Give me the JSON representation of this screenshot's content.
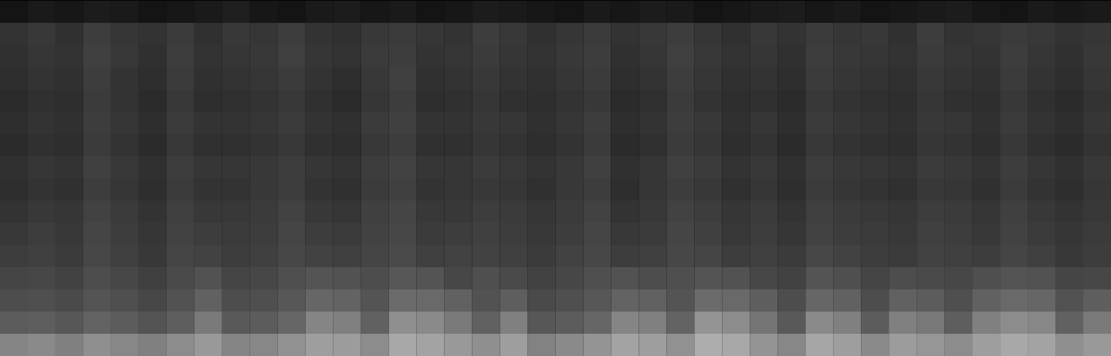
{
  "chart_data": {
    "type": "heatmap",
    "tick_labels": false,
    "zlim": [
      0,
      100
    ],
    "cells": [
      [
        8,
        10,
        9,
        11,
        10,
        8,
        9,
        10,
        12,
        9,
        8,
        10,
        11,
        9,
        10,
        8,
        9,
        11,
        10,
        9,
        8,
        10,
        9,
        11,
        10,
        8,
        9,
        10,
        11,
        9,
        10,
        8,
        9,
        10,
        11,
        9,
        8,
        10,
        9,
        10
      ],
      [
        20,
        22,
        19,
        24,
        21,
        20,
        23,
        19,
        22,
        21,
        24,
        20,
        19,
        22,
        23,
        21,
        20,
        24,
        22,
        19,
        21,
        23,
        20,
        22,
        24,
        21,
        19,
        22,
        20,
        23,
        21,
        22,
        19,
        24,
        20,
        21,
        23,
        22,
        20,
        21
      ],
      [
        19,
        21,
        20,
        25,
        22,
        19,
        24,
        20,
        21,
        22,
        25,
        21,
        20,
        23,
        24,
        20,
        21,
        23,
        21,
        20,
        22,
        24,
        19,
        21,
        25,
        22,
        20,
        21,
        19,
        24,
        22,
        21,
        20,
        23,
        21,
        20,
        24,
        21,
        19,
        22
      ],
      [
        18,
        20,
        19,
        24,
        20,
        18,
        23,
        19,
        20,
        21,
        23,
        20,
        18,
        22,
        25,
        19,
        20,
        22,
        20,
        19,
        21,
        23,
        18,
        20,
        24,
        21,
        19,
        20,
        18,
        23,
        21,
        20,
        19,
        22,
        20,
        19,
        23,
        20,
        18,
        21
      ],
      [
        17,
        19,
        18,
        23,
        20,
        17,
        22,
        18,
        19,
        20,
        22,
        19,
        17,
        21,
        24,
        18,
        19,
        21,
        19,
        18,
        20,
        22,
        17,
        19,
        23,
        20,
        18,
        19,
        17,
        22,
        20,
        19,
        18,
        21,
        19,
        18,
        22,
        19,
        17,
        20
      ],
      [
        18,
        20,
        19,
        24,
        21,
        18,
        23,
        20,
        20,
        21,
        23,
        20,
        19,
        23,
        25,
        20,
        20,
        22,
        21,
        19,
        21,
        24,
        18,
        20,
        24,
        22,
        19,
        21,
        18,
        23,
        21,
        20,
        19,
        22,
        21,
        19,
        23,
        20,
        18,
        21
      ],
      [
        17,
        19,
        18,
        23,
        20,
        17,
        22,
        19,
        19,
        20,
        22,
        19,
        18,
        22,
        24,
        19,
        19,
        21,
        20,
        18,
        20,
        23,
        17,
        19,
        23,
        21,
        18,
        20,
        17,
        22,
        20,
        19,
        18,
        21,
        20,
        18,
        22,
        19,
        17,
        20
      ],
      [
        19,
        21,
        20,
        25,
        22,
        19,
        24,
        21,
        21,
        22,
        24,
        21,
        20,
        24,
        26,
        21,
        21,
        23,
        22,
        20,
        22,
        25,
        19,
        21,
        25,
        23,
        20,
        22,
        19,
        24,
        22,
        21,
        20,
        23,
        22,
        20,
        24,
        21,
        19,
        22
      ],
      [
        18,
        20,
        19,
        24,
        21,
        18,
        23,
        20,
        20,
        22,
        24,
        20,
        19,
        23,
        25,
        20,
        21,
        22,
        21,
        19,
        22,
        24,
        18,
        21,
        24,
        22,
        19,
        21,
        18,
        23,
        21,
        20,
        19,
        22,
        21,
        19,
        23,
        20,
        18,
        21
      ],
      [
        20,
        22,
        21,
        26,
        23,
        20,
        25,
        22,
        22,
        23,
        26,
        22,
        21,
        25,
        27,
        22,
        22,
        24,
        23,
        21,
        23,
        26,
        20,
        22,
        26,
        24,
        21,
        23,
        20,
        25,
        23,
        22,
        21,
        24,
        23,
        21,
        25,
        22,
        20,
        22
      ],
      [
        22,
        24,
        22,
        27,
        24,
        21,
        26,
        24,
        23,
        24,
        27,
        24,
        23,
        26,
        28,
        23,
        24,
        25,
        24,
        22,
        24,
        27,
        22,
        23,
        27,
        25,
        22,
        24,
        21,
        26,
        24,
        23,
        22,
        25,
        24,
        22,
        26,
        23,
        21,
        23
      ],
      [
        24,
        25,
        23,
        28,
        25,
        22,
        27,
        26,
        24,
        25,
        28,
        26,
        25,
        27,
        29,
        25,
        26,
        26,
        25,
        23,
        26,
        28,
        24,
        25,
        28,
        27,
        24,
        25,
        23,
        28,
        26,
        24,
        23,
        26,
        25,
        24,
        27,
        25,
        22,
        24
      ],
      [
        27,
        28,
        26,
        30,
        28,
        25,
        29,
        32,
        27,
        28,
        31,
        33,
        32,
        30,
        34,
        33,
        28,
        31,
        29,
        26,
        28,
        31,
        32,
        30,
        31,
        33,
        32,
        28,
        26,
        33,
        31,
        27,
        30,
        29,
        28,
        31,
        33,
        32,
        27,
        28
      ],
      [
        30,
        31,
        29,
        33,
        31,
        28,
        32,
        38,
        30,
        31,
        34,
        40,
        39,
        33,
        42,
        41,
        38,
        32,
        37,
        29,
        31,
        34,
        39,
        38,
        33,
        42,
        41,
        37,
        30,
        40,
        38,
        30,
        38,
        36,
        31,
        38,
        41,
        40,
        32,
        37
      ],
      [
        36,
        37,
        34,
        39,
        36,
        33,
        37,
        48,
        35,
        36,
        40,
        52,
        50,
        38,
        56,
        54,
        48,
        38,
        50,
        34,
        36,
        40,
        52,
        50,
        39,
        58,
        55,
        46,
        35,
        54,
        50,
        36,
        50,
        47,
        37,
        50,
        55,
        53,
        38,
        48
      ],
      [
        52,
        54,
        50,
        56,
        53,
        50,
        55,
        60,
        52,
        53,
        57,
        62,
        61,
        55,
        66,
        64,
        60,
        56,
        62,
        51,
        54,
        58,
        64,
        62,
        57,
        68,
        66,
        58,
        53,
        65,
        62,
        54,
        61,
        59,
        55,
        62,
        66,
        64,
        56,
        60
      ]
    ]
  }
}
